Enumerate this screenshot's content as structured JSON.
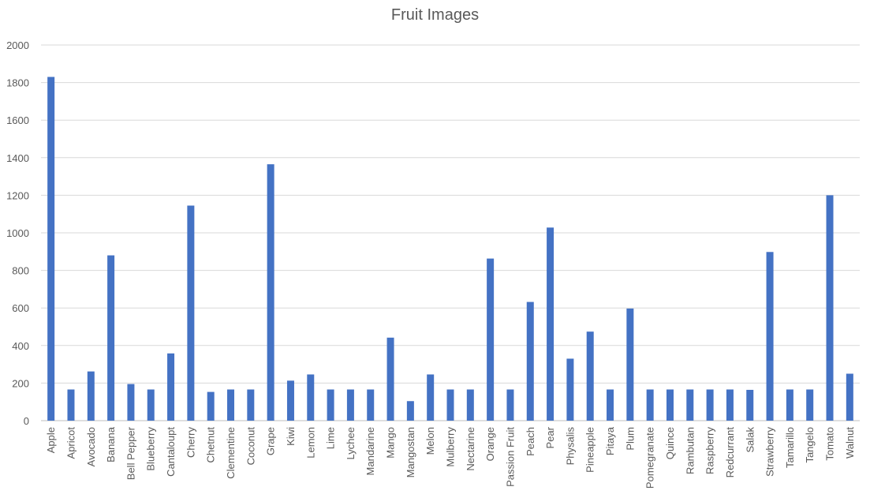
{
  "chart_data": {
    "type": "bar",
    "title": "Fruit Images",
    "xlabel": "",
    "ylabel": "",
    "ylim": [
      0,
      2000
    ],
    "yticks": [
      0,
      200,
      400,
      600,
      800,
      1000,
      1200,
      1400,
      1600,
      1800,
      2000
    ],
    "grid": true,
    "legend": "none",
    "bar_color": "#4472C4",
    "grid_color": "#D9D9D9",
    "categories": [
      "Apple",
      "Apricot",
      "Avocado",
      "Banana",
      "Bell Pepper",
      "Blueberry",
      "Cantaloupt",
      "Cherry",
      "Chetnut",
      "Clementine",
      "Coconut",
      "Grape",
      "Kiwi",
      "Lemon",
      "Lime",
      "Lychee",
      "Mandarine",
      "Mango",
      "Mangostan",
      "Melon",
      "Mulberry",
      "Nectarine",
      "Orange",
      "Passion Fruit",
      "Peach",
      "Pear",
      "Physalis",
      "Pineapple",
      "Pitaya",
      "Plum",
      "Pomegranate",
      "Quince",
      "Rambutan",
      "Raspberry",
      "Redcurrant",
      "Salak",
      "Strawberry",
      "Tamarillo",
      "Tangelo",
      "Tomato",
      "Walnut"
    ],
    "values": [
      1830,
      166,
      262,
      880,
      195,
      166,
      358,
      1145,
      153,
      166,
      166,
      1365,
      213,
      246,
      166,
      166,
      166,
      442,
      104,
      246,
      166,
      166,
      863,
      166,
      632,
      1028,
      330,
      474,
      166,
      597,
      166,
      166,
      166,
      166,
      166,
      164,
      898,
      166,
      166,
      1200,
      250
    ]
  }
}
